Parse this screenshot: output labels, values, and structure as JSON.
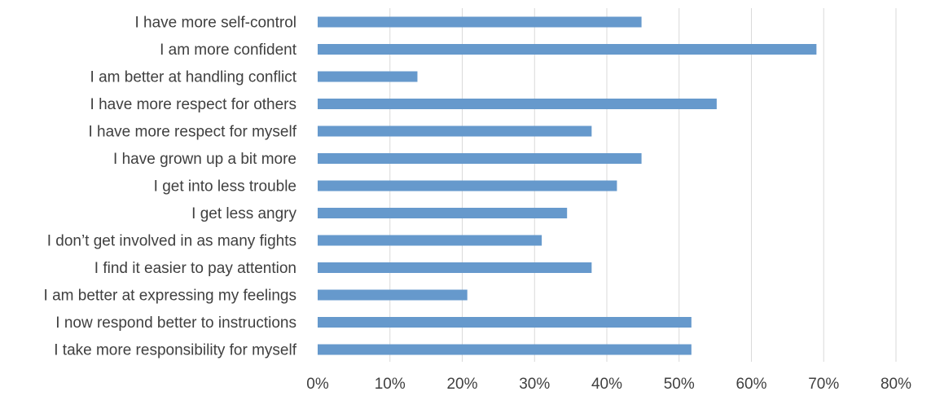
{
  "chart_data": {
    "type": "bar",
    "orientation": "horizontal",
    "categories": [
      "I have more self-control",
      "I am more confident",
      "I am better at handling conflict",
      "I have more respect for others",
      "I have more respect for myself",
      "I have grown up a bit more",
      "I get into less trouble",
      "I get less angry",
      "I don’t get involved in as many fights",
      "I find it easier to pay attention",
      "I am better at expressing my feelings",
      "I now respond better to instructions",
      "I take more responsibility for myself"
    ],
    "values": [
      0.448,
      0.69,
      0.138,
      0.552,
      0.379,
      0.448,
      0.414,
      0.345,
      0.31,
      0.379,
      0.207,
      0.517,
      0.517
    ],
    "xlim": [
      0,
      0.8
    ],
    "xticks": [
      0,
      0.1,
      0.2,
      0.3,
      0.4,
      0.5,
      0.6,
      0.7,
      0.8
    ],
    "xtick_labels": [
      "0%",
      "10%",
      "20%",
      "30%",
      "40%",
      "50%",
      "60%",
      "70%",
      "80%"
    ],
    "grid": "vertical",
    "bar_color": "#6699cc",
    "title": "",
    "xlabel": "",
    "ylabel": ""
  }
}
